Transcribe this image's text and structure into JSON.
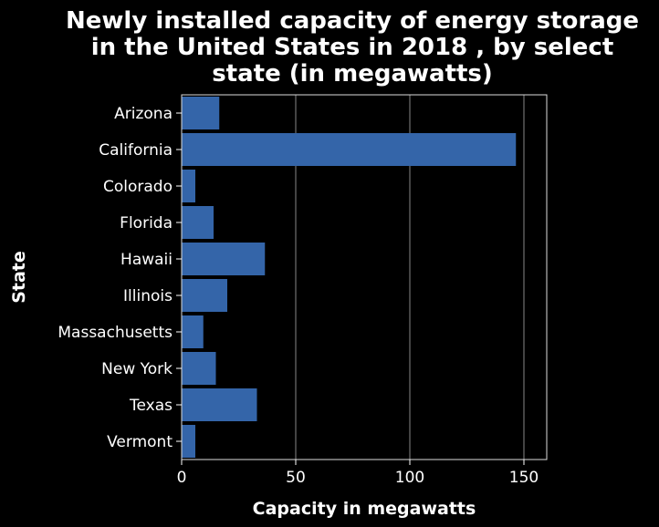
{
  "chart_data": {
    "type": "bar",
    "orientation": "horizontal",
    "title_lines": [
      "Newly installed capacity of energy storage",
      "in the United States in 2018 , by select",
      "state (in megawatts)"
    ],
    "xlabel": "Capacity in megawatts",
    "ylabel": "State",
    "categories": [
      "Arizona",
      "California",
      "Colorado",
      "Florida",
      "Hawaii",
      "Illinois",
      "Massachusetts",
      "New York",
      "Texas",
      "Vermont"
    ],
    "values": [
      16.5,
      146.5,
      6,
      14,
      36.5,
      20,
      9.5,
      15,
      33,
      6
    ],
    "xlim": [
      0,
      160
    ],
    "xticks": [
      0,
      50,
      100,
      150
    ],
    "xtick_labels": [
      "0",
      "50",
      "100",
      "150"
    ],
    "grid": "vertical",
    "colors": {
      "bar": "#3465a9",
      "background": "#000000",
      "text": "#ffffff",
      "grid": "#888888",
      "frame": "#dddddd"
    }
  }
}
